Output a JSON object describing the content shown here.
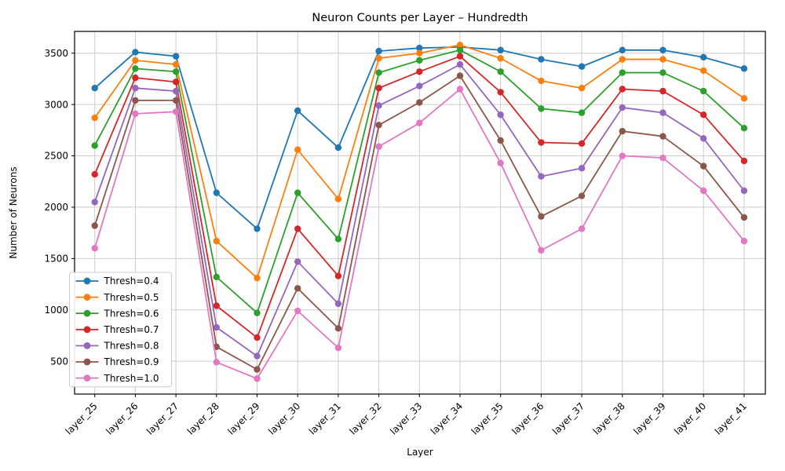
{
  "figure": {
    "title": "Neuron Counts per Layer – Hundredth",
    "xlabel": "Layer",
    "ylabel": "Number of Neurons"
  },
  "chart_data": {
    "type": "line",
    "title": "Neuron Counts per Layer – Hundredth",
    "xlabel": "Layer",
    "ylabel": "Number of Neurons",
    "grid": true,
    "grid_color": "#cccccc",
    "spine_color": "#000000",
    "background": "#ffffff",
    "legend_position": "lower left",
    "marker": "circle",
    "categories": [
      "layer_25",
      "layer_26",
      "layer_27",
      "layer_28",
      "layer_29",
      "layer_30",
      "layer_31",
      "layer_32",
      "layer_33",
      "layer_34",
      "layer_35",
      "layer_36",
      "layer_37",
      "layer_38",
      "layer_39",
      "layer_40",
      "layer_41"
    ],
    "yticks": [
      500,
      1000,
      1500,
      2000,
      2500,
      3000,
      3500
    ],
    "ylim": [
      180,
      3712
    ],
    "series": [
      {
        "name": "Thresh=0.4",
        "color": "#1f77b4",
        "values": [
          3160,
          3510,
          3470,
          2140,
          1790,
          2940,
          2580,
          3520,
          3550,
          3560,
          3530,
          3440,
          3370,
          3530,
          3530,
          3460,
          3350
        ]
      },
      {
        "name": "Thresh=0.5",
        "color": "#ff7f0e",
        "values": [
          2870,
          3430,
          3390,
          1670,
          1310,
          2560,
          2080,
          3450,
          3500,
          3580,
          3450,
          3230,
          3160,
          3440,
          3440,
          3330,
          3060
        ]
      },
      {
        "name": "Thresh=0.6",
        "color": "#2ca02c",
        "values": [
          2600,
          3350,
          3320,
          1320,
          970,
          2140,
          1690,
          3310,
          3430,
          3530,
          3320,
          2960,
          2920,
          3310,
          3310,
          3130,
          2770
        ]
      },
      {
        "name": "Thresh=0.7",
        "color": "#d62728",
        "values": [
          2320,
          3260,
          3220,
          1040,
          730,
          1790,
          1330,
          3160,
          3320,
          3470,
          3120,
          2630,
          2620,
          3150,
          3130,
          2900,
          2450
        ]
      },
      {
        "name": "Thresh=0.8",
        "color": "#9467bd",
        "values": [
          2050,
          3160,
          3130,
          830,
          550,
          1470,
          1060,
          2990,
          3180,
          3390,
          2900,
          2300,
          2380,
          2970,
          2920,
          2670,
          2160
        ]
      },
      {
        "name": "Thresh=0.9",
        "color": "#8c564b",
        "values": [
          1820,
          3040,
          3040,
          640,
          420,
          1210,
          820,
          2800,
          3020,
          3280,
          2650,
          1910,
          2110,
          2740,
          2690,
          2400,
          1900
        ]
      },
      {
        "name": "Thresh=1.0",
        "color": "#e377c2",
        "values": [
          1600,
          2910,
          2930,
          490,
          330,
          990,
          630,
          2590,
          2820,
          3150,
          2430,
          1580,
          1790,
          2500,
          2480,
          2160,
          1670
        ]
      }
    ]
  }
}
